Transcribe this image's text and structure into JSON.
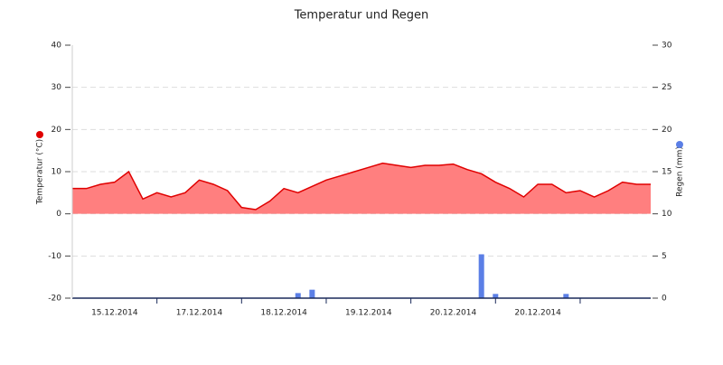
{
  "chart_data": {
    "type": "area",
    "title": "Temperatur und Regen",
    "categories": [
      null,
      null,
      null,
      "15.12.2014",
      null,
      null,
      null,
      null,
      null,
      "17.12.2014",
      null,
      null,
      null,
      null,
      null,
      "18.12.2014",
      null,
      null,
      null,
      null,
      null,
      "19.12.2014",
      null,
      null,
      null,
      null,
      null,
      "20.12.2014",
      null,
      null,
      null,
      null,
      null,
      "20.12.2014",
      null,
      null,
      null,
      null,
      null,
      null,
      null,
      null
    ],
    "series": [
      {
        "name": "Temperatur (°C)",
        "type": "area",
        "color": "#e00000",
        "fill": "#ff7f7f",
        "values": [
          6,
          6,
          7,
          7.5,
          10,
          3.5,
          5,
          4,
          5,
          8,
          7,
          5.5,
          1.5,
          1,
          3,
          6,
          5,
          6.5,
          8,
          9,
          10,
          11,
          12,
          11.5,
          11,
          11.5,
          11.5,
          11.8,
          10.5,
          9.5,
          7.5,
          6,
          4,
          7,
          7,
          5,
          5.5,
          4,
          5.5,
          7.5,
          7,
          7
        ]
      },
      {
        "name": "Regen (mm)",
        "type": "bar",
        "axis": "y2",
        "color": "#5b7fe6",
        "values": [
          0,
          0,
          0,
          0,
          0,
          0,
          0,
          0,
          0,
          0,
          0,
          0,
          0,
          0,
          0,
          0,
          0.6,
          1,
          0,
          0,
          0,
          0,
          0,
          0,
          0,
          0,
          0,
          0,
          0,
          5.2,
          0.5,
          0,
          0,
          0,
          0,
          0.5,
          0,
          0,
          0,
          0,
          0,
          0
        ]
      }
    ],
    "ylim": [
      -20,
      40
    ],
    "yticks": [
      -20,
      -10,
      0,
      10,
      20,
      30,
      40
    ],
    "y2lim": [
      0,
      30
    ],
    "y2ticks": [
      0,
      5,
      10,
      15,
      20,
      25,
      30
    ],
    "grid": true
  }
}
